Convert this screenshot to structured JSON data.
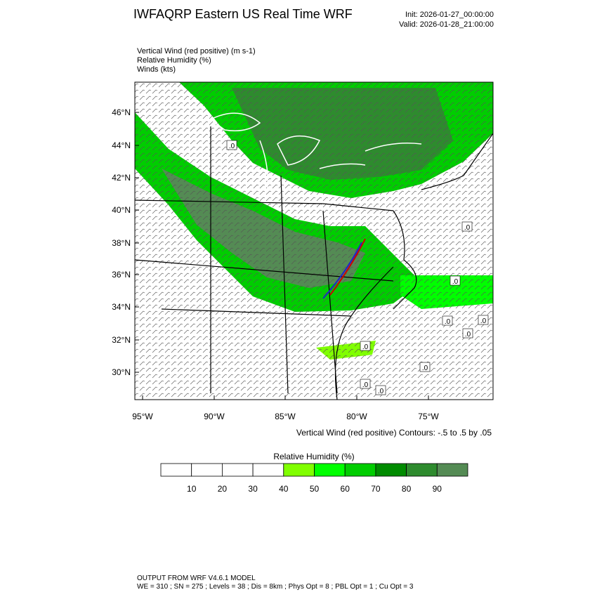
{
  "header": {
    "title": "IWFAQRP Eastern US Real Time WRF",
    "init": "Init: 2026-01-27_00:00:00",
    "valid": "Valid: 2026-01-28_21:00:00"
  },
  "legend": [
    "Vertical Wind (red positive)   (m s-1)",
    "Relative Humidity   (%)",
    "Winds   (kts)"
  ],
  "map": {
    "lon_labels": [
      "95°W",
      "90°W",
      "85°W",
      "80°W",
      "75°W"
    ],
    "lat_labels": [
      "46°N",
      "44°N",
      "42°N",
      "40°N",
      "38°N",
      "36°N",
      "34°N",
      "32°N",
      "30°N"
    ],
    "contour_labels": [
      ".0",
      ".0",
      ".0",
      ".0",
      ".0",
      ".0",
      ".0",
      ".0",
      ".0",
      ".0"
    ],
    "caption": "Vertical Wind (red positive) Contours: -.5 to .5 by .05"
  },
  "colorbar": {
    "title": "Relative Humidity  (%)",
    "ticks": [
      10,
      20,
      30,
      40,
      50,
      60,
      70,
      80,
      90
    ],
    "colors": [
      "#ffffff",
      "#ffffff",
      "#ffffff",
      "#ffffff",
      "#80ff00",
      "#00ff00",
      "#00cd00",
      "#008b00",
      "#2e8b2e",
      "#548b54"
    ]
  },
  "footer": [
    "OUTPUT FROM WRF V4.6.1 MODEL",
    "WE = 310 ; SN = 275 ; Levels = 38 ; Dis = 8km ; Phys Opt = 8 ; PBL Opt = 1 ; Cu Opt = 3"
  ]
}
